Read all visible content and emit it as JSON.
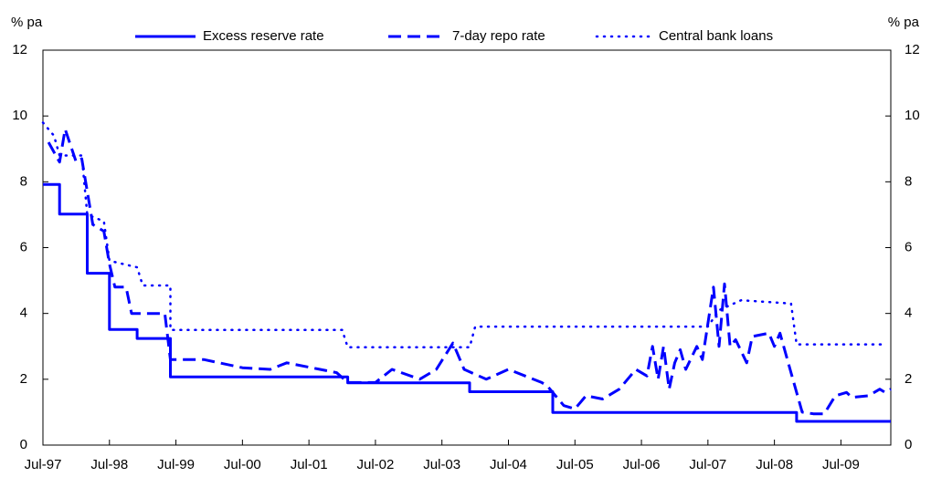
{
  "chart_data": {
    "type": "line",
    "y_label": "% pa",
    "y2_label": "% pa",
    "xlim": [
      "1997-07",
      "2010-04"
    ],
    "xticks": [
      {
        "value": "1997-07",
        "label": "Jul-97"
      },
      {
        "value": "1998-07",
        "label": "Jul-98"
      },
      {
        "value": "1999-07",
        "label": "Jul-99"
      },
      {
        "value": "2000-07",
        "label": "Jul-00"
      },
      {
        "value": "2001-07",
        "label": "Jul-01"
      },
      {
        "value": "2002-07",
        "label": "Jul-02"
      },
      {
        "value": "2003-07",
        "label": "Jul-03"
      },
      {
        "value": "2004-07",
        "label": "Jul-04"
      },
      {
        "value": "2005-07",
        "label": "Jul-05"
      },
      {
        "value": "2006-07",
        "label": "Jul-06"
      },
      {
        "value": "2007-07",
        "label": "Jul-07"
      },
      {
        "value": "2008-07",
        "label": "Jul-08"
      },
      {
        "value": "2009-07",
        "label": "Jul-09"
      }
    ],
    "ylim": [
      0,
      12
    ],
    "yticks": [
      0,
      2,
      4,
      6,
      8,
      10,
      12
    ],
    "y2lim": [
      0,
      12
    ],
    "y2ticks": [
      0,
      2,
      4,
      6,
      8,
      10,
      12
    ],
    "series": [
      {
        "name": "Excess reserve rate",
        "color": "#0000ff",
        "dash": "solid",
        "x": [
          "1997-07",
          "1997-10",
          "1997-10",
          "1998-03",
          "1998-03",
          "1998-07",
          "1998-07",
          "1998-12",
          "1998-12",
          "1999-06",
          "1999-06",
          "2002-02",
          "2002-02",
          "2003-12",
          "2003-12",
          "2005-03",
          "2005-03",
          "2008-11",
          "2008-11",
          "2010-04"
        ],
        "values": [
          7.92,
          7.92,
          7.02,
          7.02,
          5.22,
          5.22,
          3.51,
          3.51,
          3.24,
          3.24,
          2.07,
          2.07,
          1.89,
          1.89,
          1.62,
          1.62,
          0.99,
          0.99,
          0.72,
          0.72
        ]
      },
      {
        "name": "7-day repo rate",
        "color": "#0000ff",
        "dash": "dashed",
        "x": [
          "1997-08",
          "1997-10",
          "1997-11",
          "1998-01",
          "1998-02",
          "1998-04",
          "1998-06",
          "1998-07",
          "1998-08",
          "1998-10",
          "1998-11",
          "1999-05",
          "1999-06",
          "1999-12",
          "2000-07",
          "2000-12",
          "2001-03",
          "2001-09",
          "2001-12",
          "2002-02",
          "2002-07",
          "2002-10",
          "2003-03",
          "2003-06",
          "2003-09",
          "2003-11",
          "2004-03",
          "2004-07",
          "2004-10",
          "2005-01",
          "2005-02",
          "2005-05",
          "2005-07",
          "2005-09",
          "2005-12",
          "2006-03",
          "2006-06",
          "2006-08",
          "2006-09",
          "2006-10",
          "2006-11",
          "2006-12",
          "2007-01",
          "2007-02",
          "2007-03",
          "2007-05",
          "2007-06",
          "2007-08",
          "2007-09",
          "2007-10",
          "2007-11",
          "2007-12",
          "2008-02",
          "2008-03",
          "2008-06",
          "2008-07",
          "2008-08",
          "2008-10",
          "2008-12",
          "2009-02",
          "2009-04",
          "2009-06",
          "2009-08",
          "2009-09",
          "2009-12",
          "2010-02",
          "2010-03",
          "2010-04"
        ],
        "values": [
          9.2,
          8.6,
          9.6,
          8.6,
          8.7,
          6.7,
          6.5,
          5.5,
          4.8,
          4.8,
          4.0,
          4.0,
          2.6,
          2.6,
          2.35,
          2.3,
          2.5,
          2.3,
          2.2,
          1.9,
          1.9,
          2.3,
          2.0,
          2.3,
          3.1,
          2.3,
          2.0,
          2.3,
          2.1,
          1.9,
          1.8,
          1.2,
          1.1,
          1.5,
          1.4,
          1.7,
          2.3,
          2.1,
          3.0,
          2.0,
          3.0,
          1.7,
          2.5,
          2.9,
          2.3,
          3.0,
          2.6,
          4.8,
          3.0,
          4.9,
          3.0,
          3.2,
          2.5,
          3.3,
          3.4,
          3.0,
          3.4,
          2.2,
          1.0,
          0.95,
          0.95,
          1.5,
          1.6,
          1.45,
          1.5,
          1.7,
          1.6,
          1.7
        ]
      },
      {
        "name": "Central bank loans",
        "color": "#0000ff",
        "dash": "dotted",
        "x": [
          "1997-07",
          "1997-09",
          "1997-10",
          "1998-02",
          "1998-03",
          "1998-06",
          "1998-07",
          "1998-12",
          "1999-01",
          "1999-06",
          "1999-06",
          "2002-01",
          "2002-02",
          "2003-12",
          "2004-01",
          "2007-07",
          "2007-09",
          "2008-01",
          "2008-10",
          "2008-11",
          "2010-03"
        ],
        "values": [
          9.8,
          9.4,
          8.8,
          8.8,
          7.0,
          6.8,
          5.6,
          5.4,
          4.85,
          4.85,
          3.5,
          3.5,
          2.97,
          2.97,
          3.6,
          3.6,
          4.1,
          4.4,
          4.3,
          3.06,
          3.06
        ]
      }
    ]
  }
}
